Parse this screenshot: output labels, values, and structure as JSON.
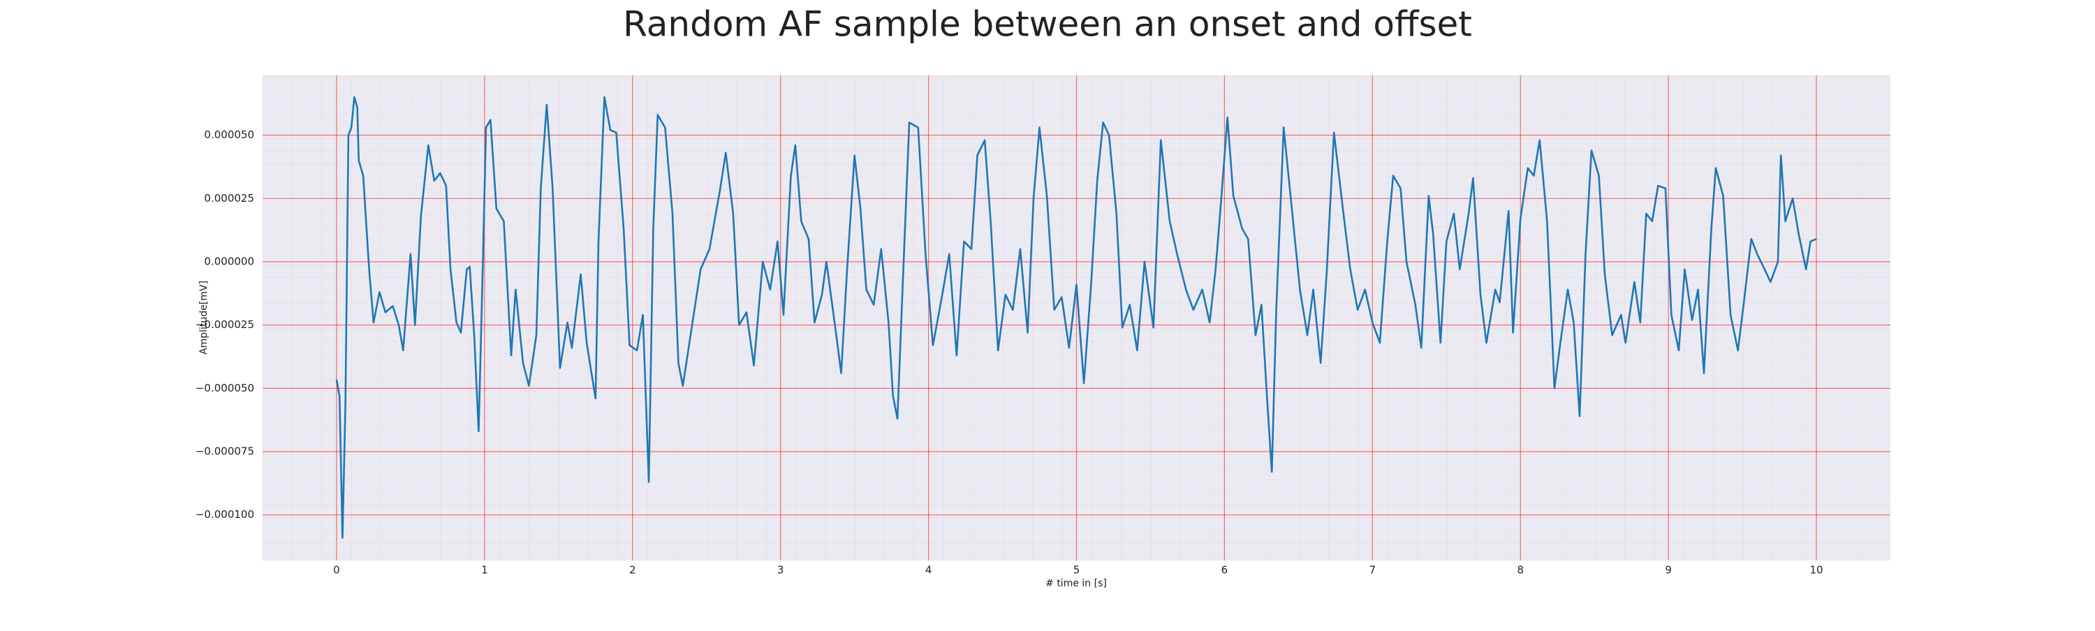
{
  "chart_data": {
    "type": "line",
    "title": "Random AF sample between an onset and offset",
    "x_label": "# time in [s]",
    "y_label": "Amplitude[mV]",
    "color": "#1f77b4",
    "grid": true,
    "grid_color": "#ff0000",
    "background": "#eaeaf2",
    "xlim": [
      -0.5,
      10.5
    ],
    "xticks": [
      0,
      1,
      2,
      3,
      4,
      5,
      6,
      7,
      8,
      9,
      10
    ],
    "ylim": [
      -0.000118,
      7.36e-05
    ],
    "yticks": [
      {
        "value": -0.0001,
        "label": "−0.000100"
      },
      {
        "value": -7.5e-05,
        "label": "−0.000075"
      },
      {
        "value": -5e-05,
        "label": "−0.000050"
      },
      {
        "value": -2.5e-05,
        "label": "−0.000025"
      },
      {
        "value": 0,
        "label": "0.000000"
      },
      {
        "value": 2.5e-05,
        "label": "0.000025"
      },
      {
        "value": 5e-05,
        "label": "0.000050"
      }
    ],
    "x": [
      0,
      0.02,
      0.04,
      0.06,
      0.08,
      0.1,
      0.12,
      0.14,
      0.15,
      0.18,
      0.22,
      0.25,
      0.29,
      0.33,
      0.38,
      0.42,
      0.45,
      0.5,
      0.53,
      0.57,
      0.62,
      0.66,
      0.7,
      0.74,
      0.77,
      0.81,
      0.84,
      0.88,
      0.9,
      0.93,
      0.96,
      0.99,
      1.01,
      1.04,
      1.08,
      1.13,
      1.18,
      1.21,
      1.26,
      1.3,
      1.35,
      1.38,
      1.42,
      1.46,
      1.51,
      1.56,
      1.59,
      1.65,
      1.69,
      1.75,
      1.77,
      1.81,
      1.85,
      1.89,
      1.94,
      1.98,
      2.03,
      2.07,
      2.11,
      2.14,
      2.17,
      2.22,
      2.27,
      2.31,
      2.34,
      2.4,
      2.46,
      2.52,
      2.59,
      2.63,
      2.68,
      2.72,
      2.77,
      2.82,
      2.88,
      2.93,
      2.98,
      3.02,
      3.07,
      3.1,
      3.14,
      3.19,
      3.23,
      3.28,
      3.31,
      3.37,
      3.41,
      3.45,
      3.5,
      3.54,
      3.58,
      3.63,
      3.68,
      3.73,
      3.76,
      3.79,
      3.83,
      3.87,
      3.93,
      3.98,
      4.03,
      4.09,
      4.14,
      4.19,
      4.24,
      4.29,
      4.33,
      4.38,
      4.42,
      4.47,
      4.52,
      4.57,
      4.62,
      4.67,
      4.71,
      4.75,
      4.8,
      4.85,
      4.9,
      4.95,
      5.0,
      5.05,
      5.1,
      5.14,
      5.18,
      5.22,
      5.27,
      5.31,
      5.36,
      5.41,
      5.46,
      5.52,
      5.57,
      5.63,
      5.68,
      5.74,
      5.79,
      5.85,
      5.9,
      5.94,
      5.98,
      6.02,
      6.06,
      6.12,
      6.16,
      6.21,
      6.25,
      6.29,
      6.32,
      6.35,
      6.4,
      6.45,
      6.51,
      6.56,
      6.6,
      6.65,
      6.69,
      6.74,
      6.8,
      6.85,
      6.9,
      6.95,
      7.0,
      7.05,
      7.1,
      7.14,
      7.19,
      7.23,
      7.29,
      7.33,
      7.38,
      7.41,
      7.46,
      7.5,
      7.55,
      7.59,
      7.65,
      7.68,
      7.73,
      7.77,
      7.83,
      7.86,
      7.92,
      7.95,
      8.0,
      8.05,
      8.09,
      8.13,
      8.18,
      8.23,
      8.27,
      8.32,
      8.36,
      8.4,
      8.44,
      8.48,
      8.53,
      8.57,
      8.62,
      8.68,
      8.71,
      8.77,
      8.81,
      8.85,
      8.89,
      8.93,
      8.98,
      9.02,
      9.07,
      9.11,
      9.16,
      9.2,
      9.24,
      9.29,
      9.32,
      9.37,
      9.42,
      9.47,
      9.51,
      9.56,
      9.6,
      9.65,
      9.69,
      9.74,
      9.76,
      9.79,
      9.84,
      9.88,
      9.93,
      9.96,
      10.0
    ],
    "values": [
      -4.66e-05,
      -5.3e-05,
      -0.000109,
      -5.6e-05,
      5e-05,
      5.3e-05,
      6.5e-05,
      6.1e-05,
      4e-05,
      3.4e-05,
      -3e-06,
      -2.4e-05,
      -1.2e-05,
      -2e-05,
      -1.75e-05,
      -2.5e-05,
      -3.5e-05,
      3e-06,
      -2.5e-05,
      1.8e-05,
      4.6e-05,
      3.2e-05,
      3.5e-05,
      3e-05,
      -3e-06,
      -2.4e-05,
      -2.8e-05,
      -3e-06,
      -2e-06,
      -2.9e-05,
      -6.7e-05,
      3e-06,
      5.3e-05,
      5.6e-05,
      2.1e-05,
      1.6e-05,
      -3.7e-05,
      -1.1e-05,
      -4e-05,
      -4.9e-05,
      -2.9e-05,
      2.9e-05,
      6.2e-05,
      2.9e-05,
      -4.2e-05,
      -2.4e-05,
      -3.4e-05,
      -5e-06,
      -3.2e-05,
      -5.4e-05,
      8e-06,
      6.5e-05,
      5.2e-05,
      5.1e-05,
      1.3e-05,
      -3.3e-05,
      -3.5e-05,
      -2.1e-05,
      -8.7e-05,
      1.3e-05,
      5.8e-05,
      5.3e-05,
      1.9e-05,
      -4e-05,
      -4.9e-05,
      -2.6e-05,
      -3e-06,
      5e-06,
      2.8e-05,
      4.3e-05,
      1.9e-05,
      -2.5e-05,
      -2e-05,
      -4.1e-05,
      0,
      -1.1e-05,
      8e-06,
      -2.1e-05,
      3.4e-05,
      4.6e-05,
      1.6e-05,
      9e-06,
      -2.4e-05,
      -1.3e-05,
      0,
      -2.6e-05,
      -4.4e-05,
      -3e-06,
      4.2e-05,
      2.1e-05,
      -1.1e-05,
      -1.7e-05,
      5e-06,
      -2.4e-05,
      -5.3e-05,
      -6.2e-05,
      -3e-06,
      5.5e-05,
      5.3e-05,
      3e-06,
      -3.3e-05,
      -1.4e-05,
      3e-06,
      -3.7e-05,
      8e-06,
      5e-06,
      4.2e-05,
      4.8e-05,
      1.6e-05,
      -3.5e-05,
      -1.3e-05,
      -1.9e-05,
      5e-06,
      -2.8e-05,
      2.5e-05,
      5.3e-05,
      2.6e-05,
      -1.9e-05,
      -1.4e-05,
      -3.4e-05,
      -9e-06,
      -4.8e-05,
      -8e-06,
      3.2e-05,
      5.5e-05,
      5e-05,
      1.9e-05,
      -2.6e-05,
      -1.7e-05,
      -3.5e-05,
      0,
      -2.6e-05,
      4.8e-05,
      1.6e-05,
      3e-06,
      -1.1e-05,
      -1.9e-05,
      -1.1e-05,
      -2.4e-05,
      -3e-06,
      2.6e-05,
      5.7e-05,
      2.6e-05,
      1.3e-05,
      9e-06,
      -2.9e-05,
      -1.7e-05,
      -5.6e-05,
      -8.3e-05,
      -1.9e-05,
      5.3e-05,
      2.4e-05,
      -1.1e-05,
      -2.9e-05,
      -1.1e-05,
      -4e-05,
      -5e-06,
      5.1e-05,
      2.1e-05,
      -3e-06,
      -1.9e-05,
      -1.1e-05,
      -2.4e-05,
      -3.2e-05,
      8e-06,
      3.4e-05,
      2.9e-05,
      0,
      -1.7e-05,
      -3.4e-05,
      2.6e-05,
      1.1e-05,
      -3.2e-05,
      8e-06,
      1.9e-05,
      -3e-06,
      1.9e-05,
      3.3e-05,
      -1.3e-05,
      -3.2e-05,
      -1.1e-05,
      -1.6e-05,
      2e-05,
      -2.8e-05,
      1.7e-05,
      3.7e-05,
      3.4e-05,
      4.8e-05,
      1.6e-05,
      -5e-05,
      -3.2e-05,
      -1.1e-05,
      -2.4e-05,
      -6.1e-05,
      3e-06,
      4.4e-05,
      3.4e-05,
      -5e-06,
      -2.9e-05,
      -2.1e-05,
      -3.2e-05,
      -8e-06,
      -2.4e-05,
      1.9e-05,
      1.6e-05,
      3e-05,
      2.9e-05,
      -2.1e-05,
      -3.5e-05,
      -3e-06,
      -2.3e-05,
      -1.1e-05,
      -4.4e-05,
      1.3e-05,
      3.7e-05,
      2.6e-05,
      -2.1e-05,
      -3.5e-05,
      -1.6e-05,
      9e-06,
      3e-06,
      -3e-06,
      -8e-06,
      0,
      4.2e-05,
      1.6e-05,
      2.5e-05,
      1.1e-05,
      -3e-06,
      8e-06,
      9e-06
    ]
  }
}
